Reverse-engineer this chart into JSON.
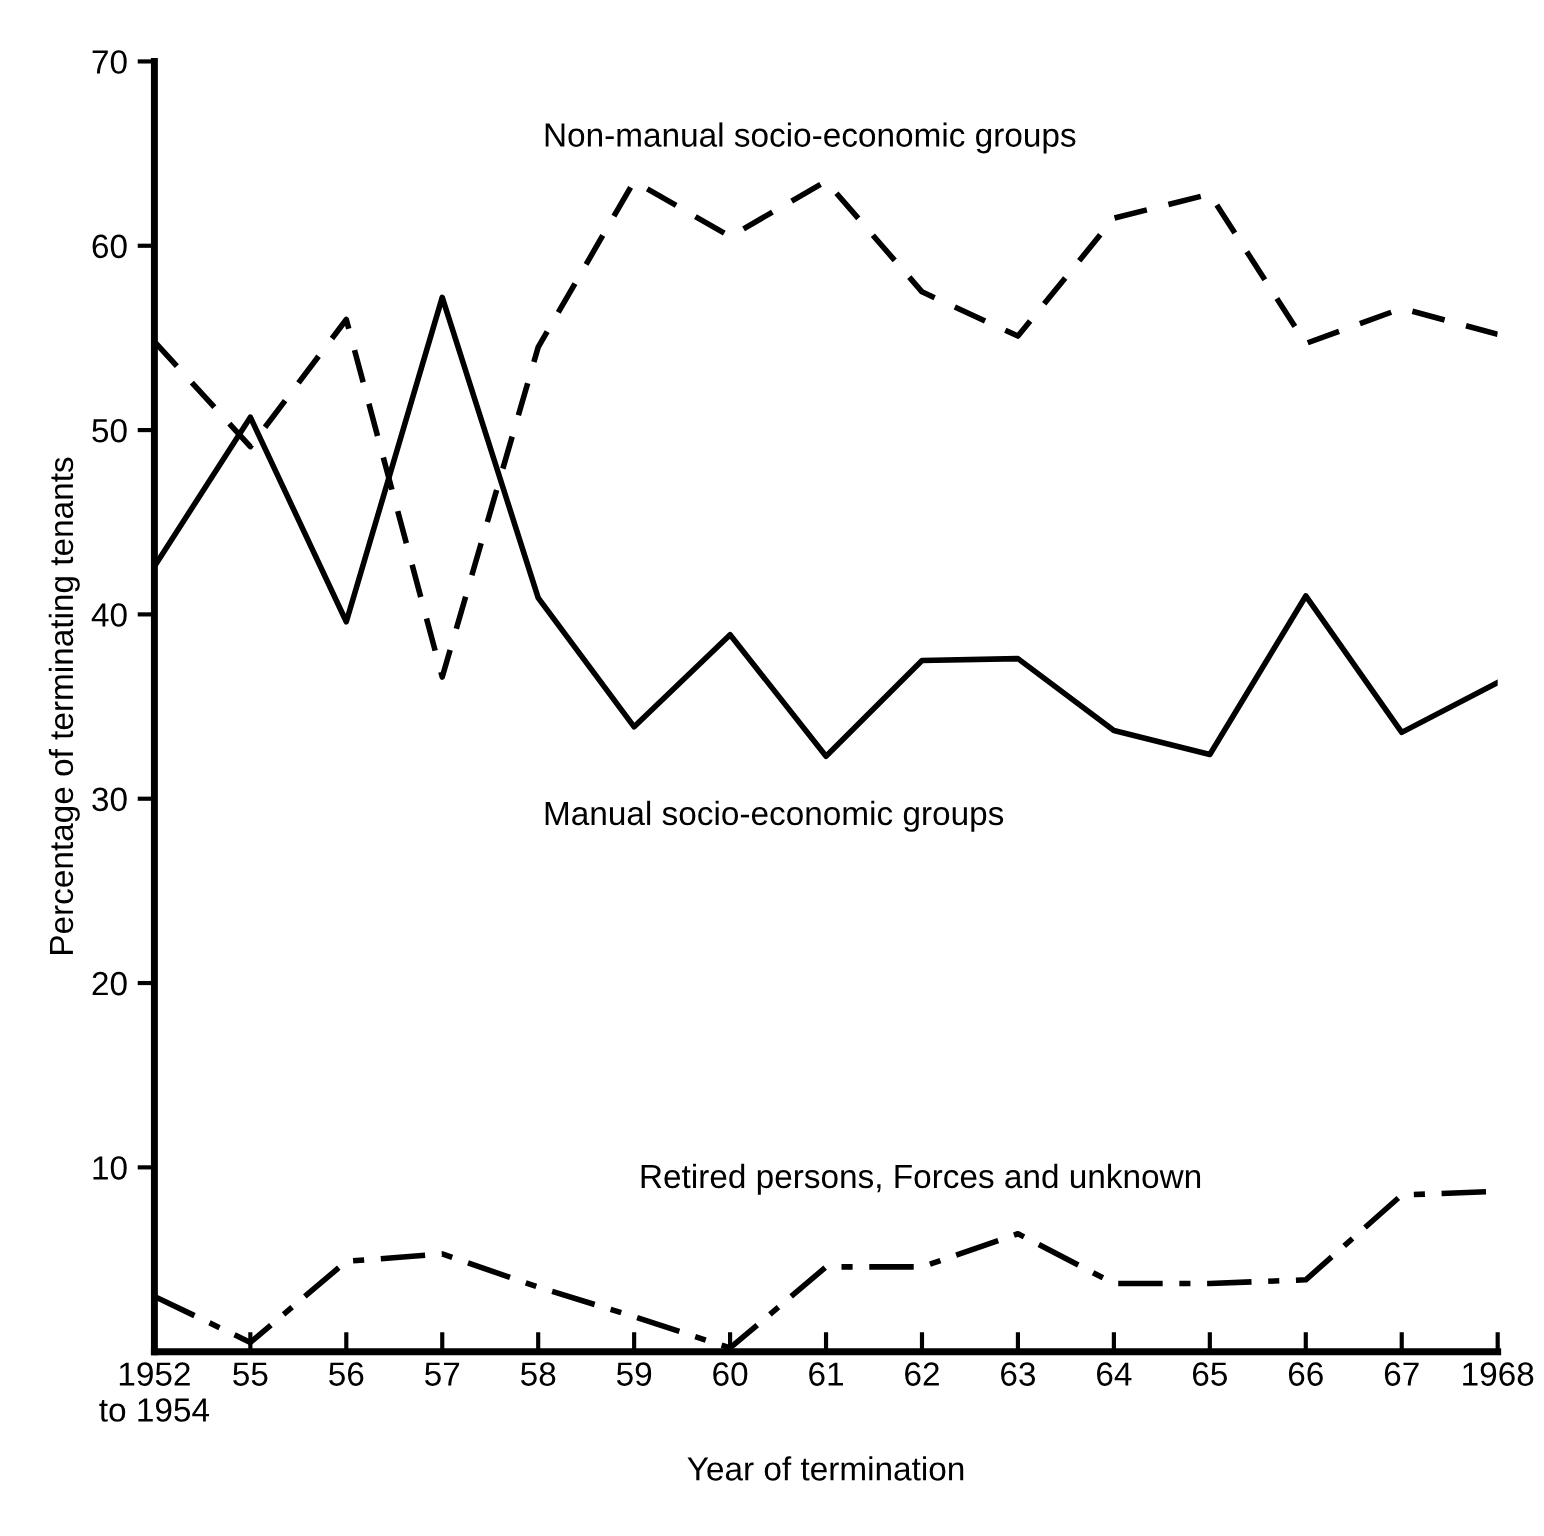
{
  "chart_data": {
    "type": "line",
    "xlabel": "Year of termination",
    "ylabel": "Percentage of terminating tenants",
    "categories": [
      "1952\nto 1954",
      "55",
      "56",
      "57",
      "58",
      "59",
      "60",
      "61",
      "62",
      "63",
      "64",
      "65",
      "66",
      "67",
      "1968"
    ],
    "series": [
      {
        "name": "Non-manual socio-economic groups",
        "color": "#000000",
        "line_style": "dashed",
        "values": [
          54.8,
          49.1,
          56.0,
          36.6,
          54.5,
          63.5,
          60.5,
          63.5,
          57.5,
          55.1,
          61.5,
          62.8,
          54.7,
          56.6,
          55.2
        ]
      },
      {
        "name": "Manual socio-economic groups",
        "color": "#000000",
        "line_style": "solid",
        "values": [
          42.6,
          50.7,
          39.6,
          57.2,
          40.9,
          33.9,
          38.9,
          32.3,
          37.5,
          37.6,
          33.7,
          32.4,
          41.0,
          33.6,
          36.3
        ]
      },
      {
        "name": "Retired persons, Forces and unknown",
        "color": "#000000",
        "line_style": "dashdot",
        "values": [
          3.0,
          0.5,
          4.9,
          5.3,
          3.5,
          1.9,
          0.2,
          4.6,
          4.6,
          6.4,
          3.7,
          3.7,
          3.9,
          8.5,
          8.7
        ]
      }
    ],
    "ylim": [
      0,
      70
    ],
    "yticks": [
      10,
      20,
      30,
      40,
      50,
      60,
      70
    ],
    "grid": false,
    "legend": false,
    "marker": "none"
  }
}
